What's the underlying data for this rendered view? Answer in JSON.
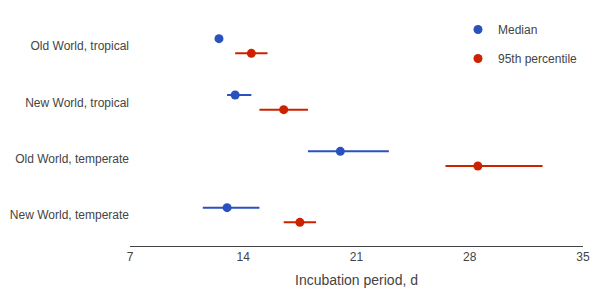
{
  "chart_data": {
    "type": "dot",
    "orientation": "horizontal",
    "categories": [
      "Old World, tropical",
      "New World, tropical",
      "Old World, temperate",
      "New World, temperate"
    ],
    "series": [
      {
        "name": "Median",
        "color": "#2a52be",
        "marker": "circle",
        "values": [
          12.5,
          13.5,
          20.0,
          13.0
        ],
        "ci_low": [
          12.5,
          13.0,
          18.0,
          11.5
        ],
        "ci_high": [
          12.5,
          14.5,
          23.0,
          15.0
        ]
      },
      {
        "name": "95th percentile",
        "color": "#cc2200",
        "marker": "circle",
        "values": [
          14.5,
          16.5,
          28.5,
          17.5
        ],
        "ci_low": [
          13.5,
          15.0,
          26.5,
          16.5
        ],
        "ci_high": [
          15.5,
          18.0,
          32.5,
          18.5
        ]
      }
    ],
    "xlabel": "Incubation period, d",
    "xlim": [
      7,
      35
    ],
    "xticks": [
      7,
      14,
      21,
      28,
      35
    ],
    "grid": false,
    "legend": "upper right"
  }
}
